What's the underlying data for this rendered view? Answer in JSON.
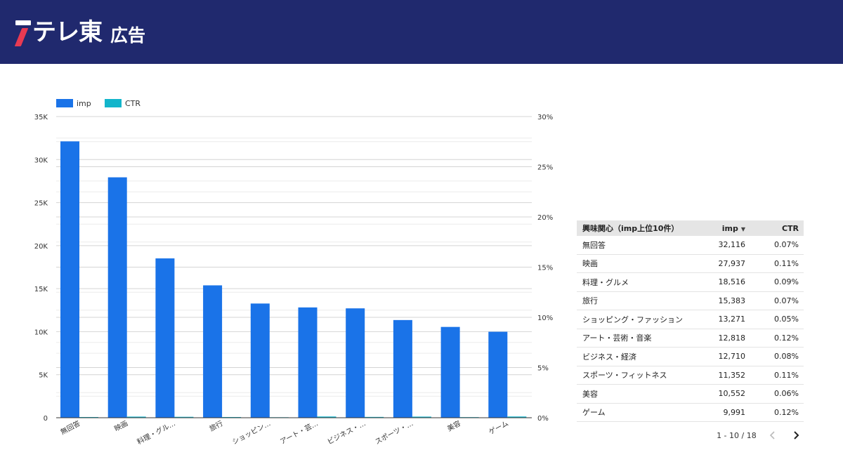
{
  "header": {
    "logo_text": "テレ東",
    "logo_sub": "広告",
    "bg_color": "#20296e",
    "accent_color": "#e83a52"
  },
  "chart_data": {
    "type": "bar",
    "categories": [
      "無回答",
      "映画",
      "料理・グル…",
      "旅行",
      "ショッピン…",
      "アート・芸…",
      "ビジネス・…",
      "スポーツ・…",
      "美容",
      "ゲーム"
    ],
    "series": [
      {
        "name": "imp",
        "color": "#1a73e8",
        "values": [
          32116,
          27937,
          18516,
          15383,
          13271,
          12818,
          12710,
          11352,
          10552,
          9991
        ],
        "axis": "left"
      },
      {
        "name": "CTR",
        "color": "#12b5cb",
        "values": [
          0.07,
          0.11,
          0.09,
          0.07,
          0.05,
          0.12,
          0.08,
          0.11,
          0.06,
          0.12
        ],
        "axis": "right"
      }
    ],
    "y_left": {
      "ticks": [
        "0",
        "5K",
        "10K",
        "15K",
        "20K",
        "25K",
        "30K",
        "35K"
      ],
      "ylim": [
        0,
        35000
      ]
    },
    "y_right": {
      "ticks": [
        "0%",
        "5%",
        "10%",
        "15%",
        "20%",
        "25%",
        "30%"
      ],
      "ylim": [
        0,
        30
      ]
    },
    "legend_position": "top-left",
    "grid": true
  },
  "table": {
    "headers": {
      "category": "興味関心（imp上位10件）",
      "imp": "imp",
      "ctr": "CTR"
    },
    "sort_icon": "sort-descending-icon",
    "rows": [
      {
        "category": "無回答",
        "imp": "32,116",
        "ctr": "0.07%"
      },
      {
        "category": "映画",
        "imp": "27,937",
        "ctr": "0.11%"
      },
      {
        "category": "料理・グルメ",
        "imp": "18,516",
        "ctr": "0.09%"
      },
      {
        "category": "旅行",
        "imp": "15,383",
        "ctr": "0.07%"
      },
      {
        "category": "ショッピング・ファッション",
        "imp": "13,271",
        "ctr": "0.05%"
      },
      {
        "category": "アート・芸術・音楽",
        "imp": "12,818",
        "ctr": "0.12%"
      },
      {
        "category": "ビジネス・経済",
        "imp": "12,710",
        "ctr": "0.08%"
      },
      {
        "category": "スポーツ・フィットネス",
        "imp": "11,352",
        "ctr": "0.11%"
      },
      {
        "category": "美容",
        "imp": "10,552",
        "ctr": "0.06%"
      },
      {
        "category": "ゲーム",
        "imp": "9,991",
        "ctr": "0.12%"
      }
    ],
    "pagination": {
      "label": "1 - 10 / 18",
      "prev_icon": "chevron-left-icon",
      "next_icon": "chevron-right-icon"
    }
  }
}
